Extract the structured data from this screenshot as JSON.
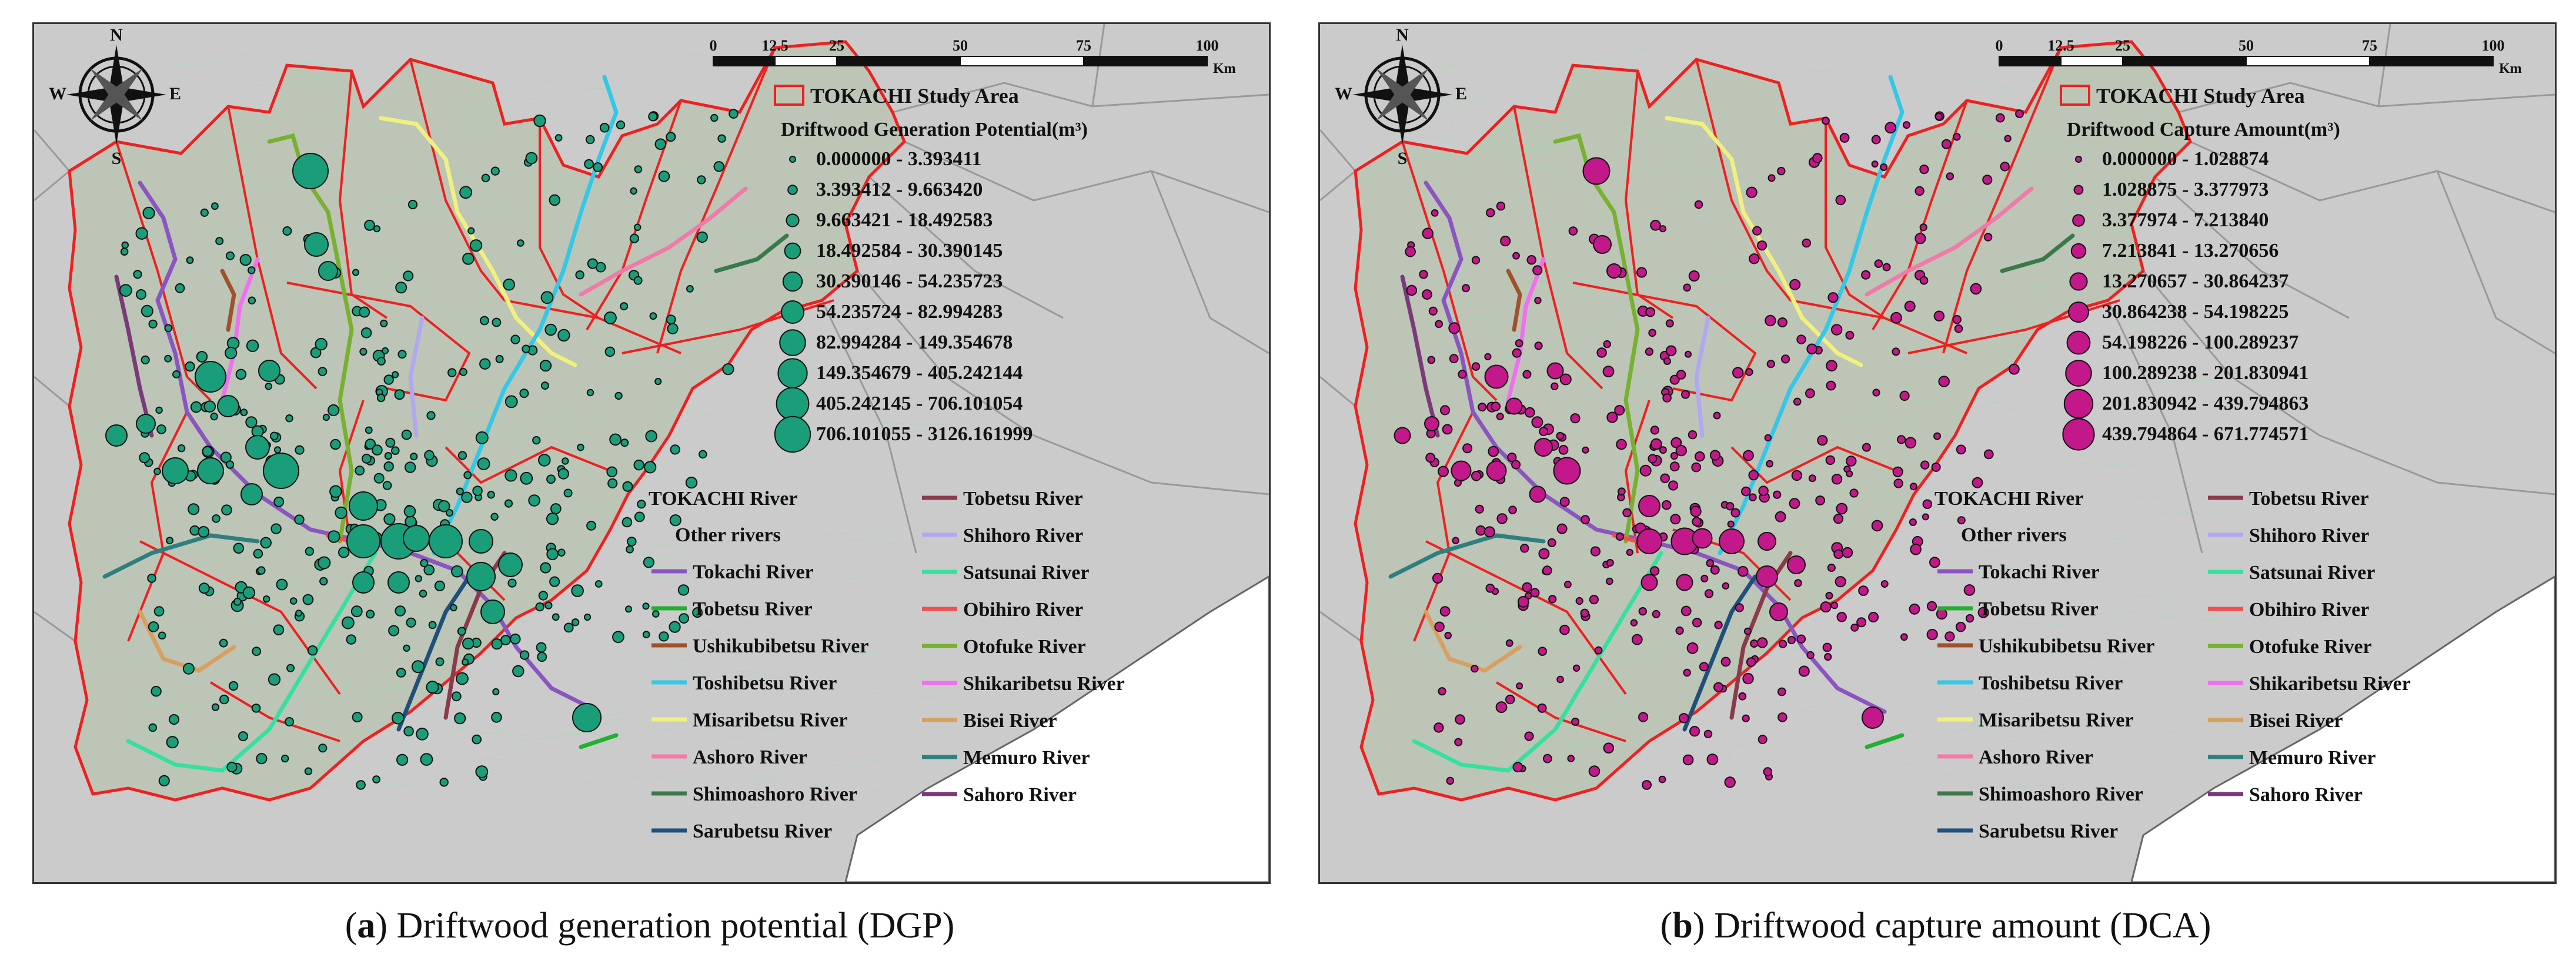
{
  "panels": [
    {
      "id": "a",
      "caption_letter": "a",
      "caption_text": "Driftwood generation potential (DGP)",
      "study_area_label": "TOKACHI Study Area",
      "legend_title": "Driftwood Generation Potential(m³)",
      "point_color": "#1a9e7a",
      "classes": [
        "0.000000 - 3.393411",
        "3.393412 - 9.663420",
        "9.663421 - 18.492583",
        "18.492584 - 30.390145",
        "30.390146 - 54.235723",
        "54.235724 - 82.994283",
        "82.994284 - 149.354678",
        "149.354679 - 405.242144",
        "405.242145 - 706.101054",
        "706.101055 - 3126.161999"
      ]
    },
    {
      "id": "b",
      "caption_letter": "b",
      "caption_text": "Driftwood capture amount (DCA)",
      "study_area_label": "TOKACHI Study Area",
      "legend_title": "Driftwood Capture Amount(m³)",
      "point_color": "#c2188a",
      "classes": [
        "0.000000 - 1.028874",
        "1.028875 - 3.377973",
        "3.377974 - 7.213840",
        "7.213841 - 13.270656",
        "13.270657 - 30.864237",
        "30.864238 - 54.198225",
        "54.198226 - 100.289237",
        "100.289238 - 201.830941",
        "201.830942 - 439.794863",
        "439.794864 - 671.774571"
      ]
    }
  ],
  "scale_bar": {
    "ticks": [
      "0",
      "12.5",
      "25",
      "50",
      "75",
      "100"
    ],
    "unit": "Km"
  },
  "compass": {
    "n": "N",
    "s": "S",
    "e": "E",
    "w": "W"
  },
  "rivers_heading": "TOKACHI River",
  "rivers_left": [
    {
      "name": "Other rivers",
      "color": "none"
    },
    {
      "name": "Tokachi River",
      "color": "#8a55c0"
    },
    {
      "name": "Tobetsu River",
      "color": "#22b030"
    },
    {
      "name": "Ushikubibetsu River",
      "color": "#a0522d"
    },
    {
      "name": "Toshibetsu River",
      "color": "#33c8e8"
    },
    {
      "name": "Misaribetsu River",
      "color": "#f0f080"
    },
    {
      "name": "Ashoro River",
      "color": "#f07aa8"
    },
    {
      "name": "Shimoashoro River",
      "color": "#3a7a4a"
    },
    {
      "name": "Sarubetsu River",
      "color": "#1f4f7a"
    }
  ],
  "rivers_right": [
    {
      "name": "Tobetsu River",
      "color": "#8b3a4a"
    },
    {
      "name": "Shihoro River",
      "color": "#b0a8f0"
    },
    {
      "name": "Satsunai River",
      "color": "#38e0a0"
    },
    {
      "name": "Obihiro River",
      "color": "#f05050"
    },
    {
      "name": "Otofuke River",
      "color": "#78b030"
    },
    {
      "name": "Shikaribetsu River",
      "color": "#f070f0"
    },
    {
      "name": "Bisei River",
      "color": "#d8a060"
    },
    {
      "name": "Memuro River",
      "color": "#2e8080"
    },
    {
      "name": "Sahoro River",
      "color": "#7a3a7a"
    }
  ]
}
